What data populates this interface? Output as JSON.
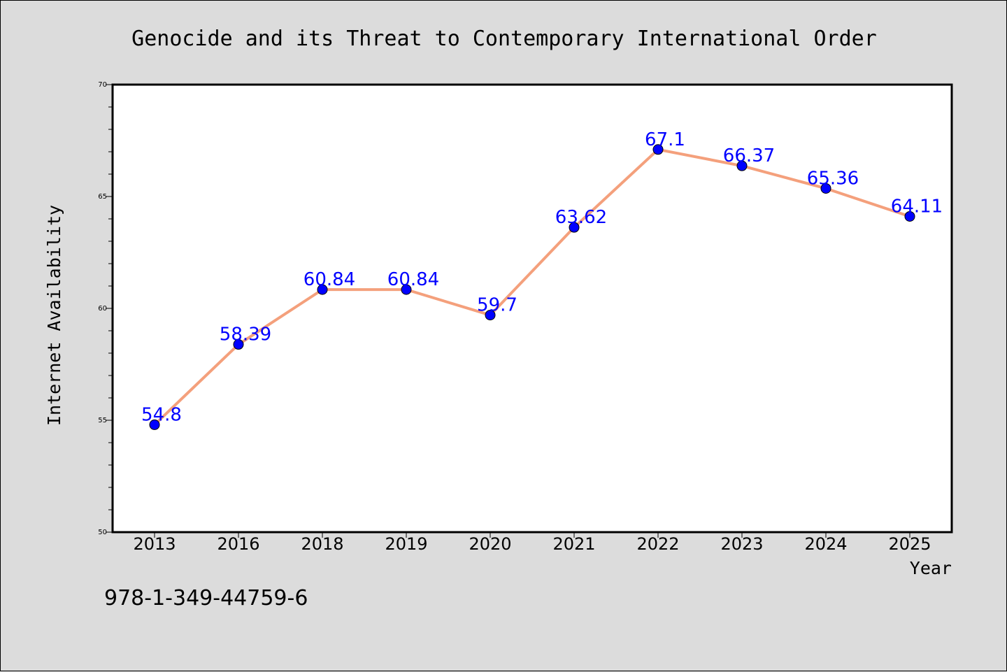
{
  "chart_data": {
    "type": "line",
    "title": "Genocide and its Threat to Contemporary International Order",
    "xlabel": "Year",
    "ylabel": "Internet Availability",
    "categories": [
      "2013",
      "2016",
      "2018",
      "2019",
      "2020",
      "2021",
      "2022",
      "2023",
      "2024",
      "2025"
    ],
    "values": [
      54.8,
      58.39,
      60.84,
      60.84,
      59.7,
      63.62,
      67.1,
      66.37,
      65.36,
      64.11
    ],
    "data_labels": [
      "54.8",
      "58.39",
      "60.84",
      "60.84",
      "59.7",
      "63.62",
      "67.1",
      "66.37",
      "65.36",
      "64.11"
    ],
    "ylim": [
      50,
      70
    ],
    "yticks": [
      "50",
      "55",
      "60",
      "65",
      "70"
    ],
    "grid": false,
    "legend": "none",
    "line_color": "#f4a07c",
    "marker_color": "#0000ff",
    "label_color": "#0000ff"
  },
  "footer": {
    "isbn": "978-1-349-44759-6"
  }
}
